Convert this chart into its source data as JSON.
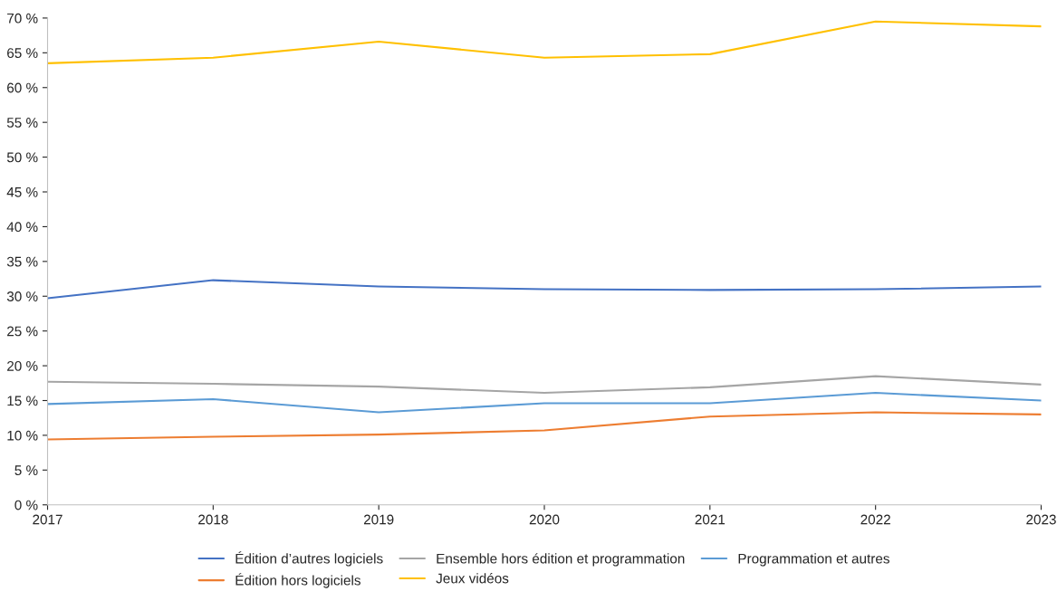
{
  "chart_data": {
    "type": "line",
    "x": [
      2017,
      2018,
      2019,
      2020,
      2021,
      2022,
      2023
    ],
    "xlim": [
      2017,
      2023
    ],
    "xticks": [
      2017,
      2018,
      2019,
      2020,
      2021,
      2022,
      2023
    ],
    "ylim": [
      0,
      70
    ],
    "yticks": [
      {
        "value": 0,
        "label": "0 %"
      },
      {
        "value": 5,
        "label": "5 %"
      },
      {
        "value": 10,
        "label": "10 %"
      },
      {
        "value": 15,
        "label": "15 %"
      },
      {
        "value": 20,
        "label": "20 %"
      },
      {
        "value": 25,
        "label": "25 %"
      },
      {
        "value": 30,
        "label": "30 %"
      },
      {
        "value": 35,
        "label": "35 %"
      },
      {
        "value": 40,
        "label": "40 %"
      },
      {
        "value": 45,
        "label": "45 %"
      },
      {
        "value": 50,
        "label": "50 %"
      },
      {
        "value": 55,
        "label": "55 %"
      },
      {
        "value": 60,
        "label": "60 %"
      },
      {
        "value": 65,
        "label": "65 %"
      },
      {
        "value": 70,
        "label": "70 %"
      }
    ],
    "grid": false,
    "legend": "bottom",
    "marker": "none",
    "line_style": "solid",
    "series": [
      {
        "name": "Édition d’autres logiciels",
        "color": "#4472c4",
        "values": [
          29.7,
          32.3,
          31.4,
          31.0,
          30.9,
          31.0,
          31.4
        ]
      },
      {
        "name": "Ensemble hors édition et programmation",
        "color": "#a5a5a5",
        "values": [
          17.7,
          17.4,
          17.0,
          16.1,
          16.9,
          18.5,
          17.3
        ]
      },
      {
        "name": "Programmation et autres",
        "color": "#5b9bd5",
        "values": [
          14.5,
          15.2,
          13.3,
          14.6,
          14.6,
          16.1,
          15.0
        ]
      },
      {
        "name": "Édition hors logiciels",
        "color": "#ed7d31",
        "values": [
          9.4,
          9.8,
          10.1,
          10.7,
          12.7,
          13.3,
          13.0
        ]
      },
      {
        "name": "Jeux vidéos",
        "color": "#ffc000",
        "values": [
          63.5,
          64.3,
          66.6,
          64.3,
          64.8,
          69.5,
          68.8
        ]
      }
    ]
  }
}
